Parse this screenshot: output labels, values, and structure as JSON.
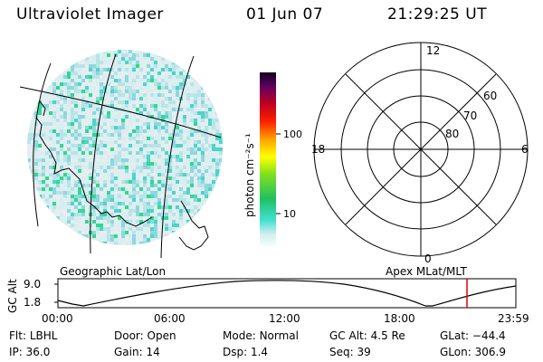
{
  "header": {
    "title": "Ultraviolet Imager",
    "date": "01 Jun 07",
    "time": "21:29:25 UT"
  },
  "colorbar": {
    "unit_label": "photon cm⁻²s⁻¹",
    "ticks": [
      "100",
      "10"
    ]
  },
  "panels": {
    "geo_label": "Geographic Lat/Lon",
    "apex_label": "Apex MLat/MLT"
  },
  "polar": {
    "mlt_labels": {
      "top": "12",
      "right": "6",
      "bottom": "0",
      "left": "18"
    },
    "lat_labels": [
      "60",
      "70",
      "80"
    ]
  },
  "altitude_plot": {
    "ylabel": "GC Alt",
    "yticks": [
      "9.0",
      "1.8"
    ],
    "xticks": [
      "00:00",
      "06:00",
      "12:00",
      "18:00",
      "23:59"
    ],
    "marker_color": "#e00000"
  },
  "info": {
    "row1": [
      {
        "label": "Flt:",
        "value": "LBHL"
      },
      {
        "label": "Door:",
        "value": "Open"
      },
      {
        "label": "Mode:",
        "value": "Normal"
      },
      {
        "label": "GC Alt:",
        "value": "4.5 Re"
      },
      {
        "label": "GLat:",
        "value": "−44.4"
      }
    ],
    "row2": [
      {
        "label": "IP:",
        "value": "36.0"
      },
      {
        "label": "Gain:",
        "value": "14"
      },
      {
        "label": "Dsp:",
        "value": "1.4"
      },
      {
        "label": "Seq:",
        "value": "39"
      },
      {
        "label": "GLon:",
        "value": "306.9"
      }
    ]
  }
}
